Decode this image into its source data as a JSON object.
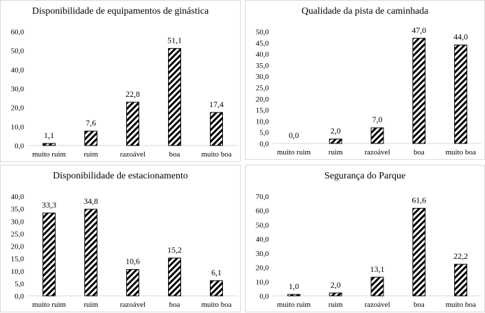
{
  "chart_data": [
    {
      "type": "bar",
      "title": "Disponibilidade  de equipamentos de ginástica",
      "categories": [
        "muito ruim",
        "ruim",
        "razoável",
        "boa",
        "muito boa"
      ],
      "values": [
        1.1,
        7.6,
        22.8,
        51.1,
        17.4
      ],
      "value_labels": [
        "1,1",
        "7,6",
        "22,8",
        "51,1",
        "17,4"
      ],
      "ylim": [
        0,
        60
      ],
      "ystep": 10,
      "xlabel": "",
      "ylabel": "",
      "grid": false,
      "legend": "none"
    },
    {
      "type": "bar",
      "title": "Qualidade da pista de caminhada",
      "categories": [
        "muito ruim",
        "ruim",
        "razoável",
        "boa",
        "muito boa"
      ],
      "values": [
        0.0,
        2.0,
        7.0,
        47.0,
        44.0
      ],
      "value_labels": [
        "0,0",
        "2,0",
        "7,0",
        "47,0",
        "44,0"
      ],
      "ylim": [
        0,
        50
      ],
      "ystep": 5,
      "xlabel": "",
      "ylabel": "",
      "grid": false,
      "legend": "none"
    },
    {
      "type": "bar",
      "title": "Disponibilidade  de estacionamento",
      "categories": [
        "muito ruim",
        "ruim",
        "razoável",
        "boa",
        "muito boa"
      ],
      "values": [
        33.3,
        34.8,
        10.6,
        15.2,
        6.1
      ],
      "value_labels": [
        "33,3",
        "34,8",
        "10,6",
        "15,2",
        "6,1"
      ],
      "ylim": [
        0,
        40
      ],
      "ystep": 5,
      "xlabel": "",
      "ylabel": "",
      "grid": false,
      "legend": "none"
    },
    {
      "type": "bar",
      "title": "Segurança do Parque",
      "categories": [
        "muito ruim",
        "ruim",
        "razoável",
        "boa",
        "muito boa"
      ],
      "values": [
        1.0,
        2.0,
        13.1,
        61.6,
        22.2
      ],
      "value_labels": [
        "1,0",
        "2,0",
        "13,1",
        "61,6",
        "22,2"
      ],
      "ylim": [
        0,
        70
      ],
      "ystep": 10,
      "xlabel": "",
      "ylabel": "",
      "grid": false,
      "legend": "none"
    }
  ]
}
